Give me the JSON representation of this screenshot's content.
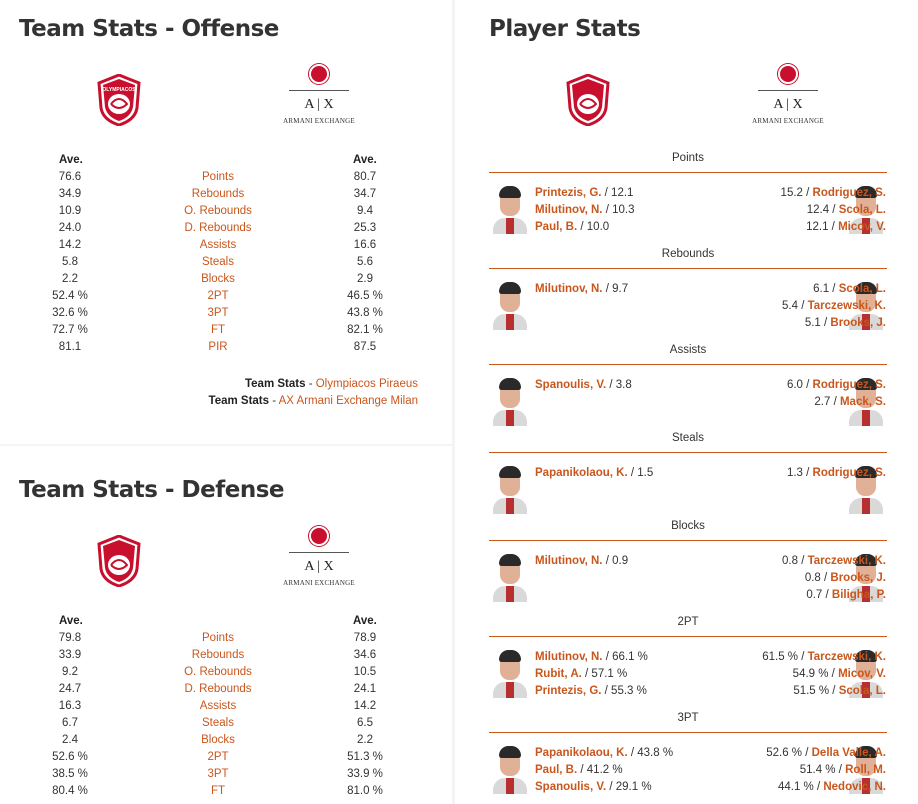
{
  "offense": {
    "title": "Team Stats - Offense",
    "ave_left": "Ave.",
    "ave_right": "Ave.",
    "rows": [
      {
        "home": "76.6",
        "label": "Points",
        "away": "80.7"
      },
      {
        "home": "34.9",
        "label": "Rebounds",
        "away": "34.7"
      },
      {
        "home": "10.9",
        "label": "O. Rebounds",
        "away": "9.4"
      },
      {
        "home": "24.0",
        "label": "D. Rebounds",
        "away": "25.3"
      },
      {
        "home": "14.2",
        "label": "Assists",
        "away": "16.6"
      },
      {
        "home": "5.8",
        "label": "Steals",
        "away": "5.6"
      },
      {
        "home": "2.2",
        "label": "Blocks",
        "away": "2.9"
      },
      {
        "home": "52.4 %",
        "label": "2PT",
        "away": "46.5 %"
      },
      {
        "home": "32.6 %",
        "label": "3PT",
        "away": "43.8 %"
      },
      {
        "home": "72.7 %",
        "label": "FT",
        "away": "82.1 %"
      },
      {
        "home": "81.1",
        "label": "PIR",
        "away": "87.5"
      }
    ],
    "team_links": [
      {
        "prefix": "Team Stats",
        "sep": " - ",
        "team": "Olympiacos Piraeus"
      },
      {
        "prefix": "Team Stats",
        "sep": " - ",
        "team": "AX Armani Exchange Milan"
      }
    ]
  },
  "defense": {
    "title": "Team Stats - Defense",
    "ave_left": "Ave.",
    "ave_right": "Ave.",
    "rows": [
      {
        "home": "79.8",
        "label": "Points",
        "away": "78.9"
      },
      {
        "home": "33.9",
        "label": "Rebounds",
        "away": "34.6"
      },
      {
        "home": "9.2",
        "label": "O. Rebounds",
        "away": "10.5"
      },
      {
        "home": "24.7",
        "label": "D. Rebounds",
        "away": "24.1"
      },
      {
        "home": "16.3",
        "label": "Assists",
        "away": "14.2"
      },
      {
        "home": "6.7",
        "label": "Steals",
        "away": "6.5"
      },
      {
        "home": "2.4",
        "label": "Blocks",
        "away": "2.2"
      },
      {
        "home": "52.6 %",
        "label": "2PT",
        "away": "51.3 %"
      },
      {
        "home": "38.5 %",
        "label": "3PT",
        "away": "33.9 %"
      },
      {
        "home": "80.4 %",
        "label": "FT",
        "away": "81.0 %"
      }
    ]
  },
  "logos": {
    "home_text": "OLYMPIACOS",
    "away_mark": "A | X",
    "away_sub": "ARMANI EXCHANGE",
    "home_color": "#c8102e",
    "away_color": "#c8102e"
  },
  "players": {
    "title": "Player Stats",
    "categories": [
      {
        "name": "Points",
        "home": [
          {
            "n": "Printezis, G.",
            "v": " / 12.1"
          },
          {
            "n": "Milutinov, N.",
            "v": " / 10.3"
          },
          {
            "n": "Paul, B.",
            "v": " / 10.0"
          }
        ],
        "away": [
          {
            "v": "15.2 / ",
            "n": "Rodriguez, S."
          },
          {
            "v": "12.4 / ",
            "n": "Scola, L."
          },
          {
            "v": "12.1 / ",
            "n": "Micov, V."
          }
        ]
      },
      {
        "name": "Rebounds",
        "home": [
          {
            "n": "Milutinov, N.",
            "v": " / 9.7"
          }
        ],
        "away": [
          {
            "v": "6.1 / ",
            "n": "Scola, L."
          },
          {
            "v": "5.4 / ",
            "n": "Tarczewski, K."
          },
          {
            "v": "5.1 / ",
            "n": "Brooks, J."
          }
        ]
      },
      {
        "name": "Assists",
        "home": [
          {
            "n": "Spanoulis, V.",
            "v": " / 3.8"
          }
        ],
        "away": [
          {
            "v": "6.0 / ",
            "n": "Rodriguez, S."
          },
          {
            "v": "2.7 / ",
            "n": "Mack, S."
          }
        ]
      },
      {
        "name": "Steals",
        "home": [
          {
            "n": "Papanikolaou, K.",
            "v": " / 1.5"
          }
        ],
        "away": [
          {
            "v": "1.3 / ",
            "n": "Rodriguez, S."
          }
        ]
      },
      {
        "name": "Blocks",
        "home": [
          {
            "n": "Milutinov, N.",
            "v": " / 0.9"
          }
        ],
        "away": [
          {
            "v": "0.8 / ",
            "n": "Tarczewski, K."
          },
          {
            "v": "0.8 / ",
            "n": "Brooks, J."
          },
          {
            "v": "0.7 / ",
            "n": "Biligha, P."
          }
        ]
      },
      {
        "name": "2PT",
        "home": [
          {
            "n": "Milutinov, N.",
            "v": " / 66.1 %"
          },
          {
            "n": "Rubit, A.",
            "v": " / 57.1 %"
          },
          {
            "n": "Printezis, G.",
            "v": " / 55.3 %"
          }
        ],
        "away": [
          {
            "v": "61.5 % / ",
            "n": "Tarczewski, K."
          },
          {
            "v": "54.9 % / ",
            "n": "Micov, V."
          },
          {
            "v": "51.5 % / ",
            "n": "Scola, L."
          }
        ]
      },
      {
        "name": "3PT",
        "home": [
          {
            "n": "Papanikolaou, K.",
            "v": " / 43.8 %"
          },
          {
            "n": "Paul, B.",
            "v": " / 41.2 %"
          },
          {
            "n": "Spanoulis, V.",
            "v": " / 29.1 %"
          }
        ],
        "away": [
          {
            "v": "52.6 % / ",
            "n": "Della Valle, A."
          },
          {
            "v": "51.4 % / ",
            "n": "Roll, M."
          },
          {
            "v": "44.1 % / ",
            "n": "Nedovic, N."
          }
        ]
      }
    ]
  }
}
